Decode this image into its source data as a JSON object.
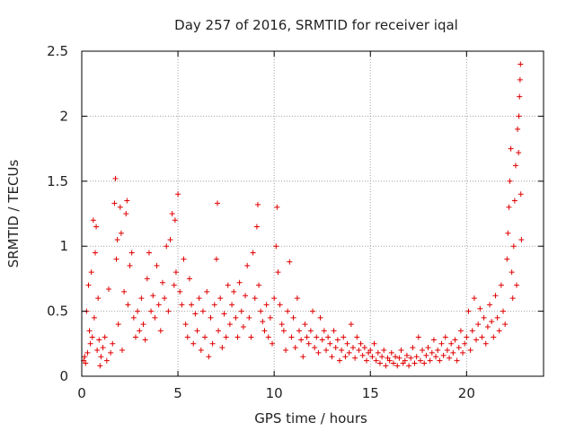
{
  "chart_data": {
    "type": "scatter",
    "title": "Day 257 of 2016, SRMTID for receiver iqal",
    "xlabel": "GPS time / hours",
    "ylabel": "SRMTID / TECUs",
    "xlim": [
      0,
      24
    ],
    "ylim": [
      0,
      2.5
    ],
    "x_ticks": [
      {
        "value": 0,
        "label": "0"
      },
      {
        "value": 5,
        "label": "5"
      },
      {
        "value": 10,
        "label": "10"
      },
      {
        "value": 15,
        "label": "15"
      },
      {
        "value": 20,
        "label": "20"
      }
    ],
    "y_ticks": [
      {
        "value": 0,
        "label": "0"
      },
      {
        "value": 0.5,
        "label": "0.5"
      },
      {
        "value": 1,
        "label": "1"
      },
      {
        "value": 1.5,
        "label": "1.5"
      },
      {
        "value": 2,
        "label": "2"
      },
      {
        "value": 2.5,
        "label": "2.5"
      }
    ],
    "grid": true,
    "marker": "+",
    "colors": {
      "points": "#e00000",
      "grid": "#a0a0a0",
      "axis": "#000000"
    },
    "series": [
      {
        "name": "SRMTID",
        "points": [
          [
            0.1,
            0.12
          ],
          [
            0.15,
            0.15
          ],
          [
            0.2,
            0.1
          ],
          [
            0.25,
            0.5
          ],
          [
            0.3,
            0.18
          ],
          [
            0.35,
            0.7
          ],
          [
            0.4,
            0.35
          ],
          [
            0.45,
            0.25
          ],
          [
            0.5,
            0.8
          ],
          [
            0.55,
            0.3
          ],
          [
            0.6,
            1.2
          ],
          [
            0.65,
            0.45
          ],
          [
            0.7,
            0.95
          ],
          [
            0.75,
            1.15
          ],
          [
            0.8,
            0.2
          ],
          [
            0.85,
            0.6
          ],
          [
            0.9,
            0.28
          ],
          [
            0.95,
            0.08
          ],
          [
            1.0,
            0.15
          ],
          [
            1.1,
            0.22
          ],
          [
            1.2,
            0.3
          ],
          [
            1.3,
            0.12
          ],
          [
            1.4,
            0.67
          ],
          [
            1.5,
            0.18
          ],
          [
            1.6,
            0.25
          ],
          [
            1.7,
            1.33
          ],
          [
            1.75,
            1.52
          ],
          [
            1.8,
            0.9
          ],
          [
            1.85,
            1.05
          ],
          [
            1.9,
            0.4
          ],
          [
            2.0,
            1.3
          ],
          [
            2.05,
            1.1
          ],
          [
            2.1,
            0.2
          ],
          [
            2.2,
            0.65
          ],
          [
            2.3,
            1.25
          ],
          [
            2.35,
            1.35
          ],
          [
            2.4,
            0.55
          ],
          [
            2.5,
            0.85
          ],
          [
            2.6,
            0.95
          ],
          [
            2.7,
            0.45
          ],
          [
            2.8,
            0.3
          ],
          [
            2.9,
            0.5
          ],
          [
            3.0,
            0.35
          ],
          [
            3.1,
            0.6
          ],
          [
            3.2,
            0.4
          ],
          [
            3.3,
            0.28
          ],
          [
            3.4,
            0.75
          ],
          [
            3.5,
            0.95
          ],
          [
            3.6,
            0.5
          ],
          [
            3.7,
            0.62
          ],
          [
            3.8,
            0.45
          ],
          [
            3.9,
            0.85
          ],
          [
            4.0,
            0.55
          ],
          [
            4.1,
            0.35
          ],
          [
            4.2,
            0.72
          ],
          [
            4.3,
            0.6
          ],
          [
            4.4,
            1.0
          ],
          [
            4.5,
            0.5
          ],
          [
            4.6,
            1.05
          ],
          [
            4.7,
            1.25
          ],
          [
            4.8,
            0.7
          ],
          [
            4.85,
            1.2
          ],
          [
            4.9,
            0.8
          ],
          [
            5.0,
            1.4
          ],
          [
            5.1,
            0.65
          ],
          [
            5.2,
            0.55
          ],
          [
            5.3,
            0.9
          ],
          [
            5.4,
            0.4
          ],
          [
            5.5,
            0.3
          ],
          [
            5.6,
            0.75
          ],
          [
            5.7,
            0.55
          ],
          [
            5.8,
            0.25
          ],
          [
            5.9,
            0.48
          ],
          [
            6.0,
            0.35
          ],
          [
            6.1,
            0.6
          ],
          [
            6.2,
            0.2
          ],
          [
            6.3,
            0.5
          ],
          [
            6.4,
            0.3
          ],
          [
            6.5,
            0.65
          ],
          [
            6.6,
            0.15
          ],
          [
            6.7,
            0.45
          ],
          [
            6.8,
            0.25
          ],
          [
            6.9,
            0.55
          ],
          [
            7.0,
            0.9
          ],
          [
            7.05,
            1.33
          ],
          [
            7.1,
            0.35
          ],
          [
            7.2,
            0.6
          ],
          [
            7.3,
            0.22
          ],
          [
            7.4,
            0.48
          ],
          [
            7.5,
            0.3
          ],
          [
            7.6,
            0.7
          ],
          [
            7.7,
            0.4
          ],
          [
            7.8,
            0.55
          ],
          [
            7.9,
            0.65
          ],
          [
            8.0,
            0.45
          ],
          [
            8.1,
            0.3
          ],
          [
            8.2,
            0.72
          ],
          [
            8.3,
            0.5
          ],
          [
            8.4,
            0.38
          ],
          [
            8.5,
            0.62
          ],
          [
            8.6,
            0.85
          ],
          [
            8.7,
            0.45
          ],
          [
            8.8,
            0.3
          ],
          [
            8.9,
            0.95
          ],
          [
            9.0,
            0.6
          ],
          [
            9.1,
            1.15
          ],
          [
            9.15,
            1.32
          ],
          [
            9.2,
            0.7
          ],
          [
            9.3,
            0.5
          ],
          [
            9.4,
            0.42
          ],
          [
            9.5,
            0.35
          ],
          [
            9.6,
            0.55
          ],
          [
            9.7,
            0.3
          ],
          [
            9.8,
            0.45
          ],
          [
            9.9,
            0.25
          ],
          [
            10.0,
            0.6
          ],
          [
            10.1,
            1.0
          ],
          [
            10.15,
            1.3
          ],
          [
            10.2,
            0.8
          ],
          [
            10.3,
            0.55
          ],
          [
            10.4,
            0.4
          ],
          [
            10.5,
            0.35
          ],
          [
            10.6,
            0.2
          ],
          [
            10.7,
            0.5
          ],
          [
            10.8,
            0.88
          ],
          [
            10.9,
            0.3
          ],
          [
            11.0,
            0.45
          ],
          [
            11.1,
            0.22
          ],
          [
            11.2,
            0.6
          ],
          [
            11.3,
            0.35
          ],
          [
            11.4,
            0.28
          ],
          [
            11.5,
            0.15
          ],
          [
            11.6,
            0.4
          ],
          [
            11.7,
            0.3
          ],
          [
            11.8,
            0.25
          ],
          [
            11.9,
            0.35
          ],
          [
            12.0,
            0.5
          ],
          [
            12.1,
            0.22
          ],
          [
            12.2,
            0.3
          ],
          [
            12.3,
            0.18
          ],
          [
            12.4,
            0.45
          ],
          [
            12.5,
            0.28
          ],
          [
            12.6,
            0.35
          ],
          [
            12.7,
            0.2
          ],
          [
            12.8,
            0.3
          ],
          [
            12.9,
            0.25
          ],
          [
            13.0,
            0.15
          ],
          [
            13.1,
            0.35
          ],
          [
            13.2,
            0.22
          ],
          [
            13.3,
            0.28
          ],
          [
            13.4,
            0.12
          ],
          [
            13.5,
            0.2
          ],
          [
            13.6,
            0.3
          ],
          [
            13.7,
            0.15
          ],
          [
            13.8,
            0.25
          ],
          [
            13.9,
            0.18
          ],
          [
            14.0,
            0.4
          ],
          [
            14.1,
            0.22
          ],
          [
            14.2,
            0.14
          ],
          [
            14.3,
            0.3
          ],
          [
            14.4,
            0.2
          ],
          [
            14.5,
            0.25
          ],
          [
            14.6,
            0.16
          ],
          [
            14.7,
            0.22
          ],
          [
            14.8,
            0.12
          ],
          [
            14.9,
            0.18
          ],
          [
            15.0,
            0.2
          ],
          [
            15.1,
            0.15
          ],
          [
            15.2,
            0.25
          ],
          [
            15.3,
            0.12
          ],
          [
            15.4,
            0.18
          ],
          [
            15.5,
            0.1
          ],
          [
            15.6,
            0.15
          ],
          [
            15.7,
            0.2
          ],
          [
            15.8,
            0.08
          ],
          [
            15.9,
            0.14
          ],
          [
            16.0,
            0.12
          ],
          [
            16.1,
            0.18
          ],
          [
            16.2,
            0.1
          ],
          [
            16.3,
            0.15
          ],
          [
            16.4,
            0.08
          ],
          [
            16.5,
            0.14
          ],
          [
            16.6,
            0.2
          ],
          [
            16.7,
            0.1
          ],
          [
            16.8,
            0.12
          ],
          [
            16.9,
            0.16
          ],
          [
            17.0,
            0.08
          ],
          [
            17.1,
            0.14
          ],
          [
            17.2,
            0.22
          ],
          [
            17.3,
            0.1
          ],
          [
            17.4,
            0.15
          ],
          [
            17.5,
            0.3
          ],
          [
            17.6,
            0.12
          ],
          [
            17.7,
            0.2
          ],
          [
            17.8,
            0.1
          ],
          [
            17.9,
            0.16
          ],
          [
            18.0,
            0.22
          ],
          [
            18.1,
            0.12
          ],
          [
            18.2,
            0.18
          ],
          [
            18.3,
            0.28
          ],
          [
            18.4,
            0.15
          ],
          [
            18.5,
            0.2
          ],
          [
            18.6,
            0.12
          ],
          [
            18.7,
            0.25
          ],
          [
            18.8,
            0.16
          ],
          [
            18.9,
            0.3
          ],
          [
            19.0,
            0.2
          ],
          [
            19.1,
            0.14
          ],
          [
            19.2,
            0.25
          ],
          [
            19.3,
            0.18
          ],
          [
            19.4,
            0.28
          ],
          [
            19.5,
            0.12
          ],
          [
            19.6,
            0.22
          ],
          [
            19.7,
            0.35
          ],
          [
            19.8,
            0.18
          ],
          [
            19.9,
            0.25
          ],
          [
            20.0,
            0.3
          ],
          [
            20.1,
            0.5
          ],
          [
            20.2,
            0.2
          ],
          [
            20.3,
            0.35
          ],
          [
            20.4,
            0.6
          ],
          [
            20.5,
            0.28
          ],
          [
            20.6,
            0.4
          ],
          [
            20.7,
            0.52
          ],
          [
            20.8,
            0.3
          ],
          [
            20.9,
            0.45
          ],
          [
            21.0,
            0.25
          ],
          [
            21.1,
            0.38
          ],
          [
            21.2,
            0.55
          ],
          [
            21.3,
            0.42
          ],
          [
            21.4,
            0.3
          ],
          [
            21.5,
            0.62
          ],
          [
            21.6,
            0.45
          ],
          [
            21.7,
            0.35
          ],
          [
            21.8,
            0.7
          ],
          [
            21.9,
            0.5
          ],
          [
            22.0,
            0.4
          ],
          [
            22.1,
            0.9
          ],
          [
            22.15,
            1.1
          ],
          [
            22.2,
            1.3
          ],
          [
            22.25,
            1.5
          ],
          [
            22.3,
            1.75
          ],
          [
            22.35,
            0.8
          ],
          [
            22.4,
            0.6
          ],
          [
            22.45,
            1.0
          ],
          [
            22.5,
            1.35
          ],
          [
            22.55,
            1.62
          ],
          [
            22.6,
            0.7
          ],
          [
            22.65,
            1.9
          ],
          [
            22.7,
            1.72
          ],
          [
            22.72,
            2.0
          ],
          [
            22.75,
            2.15
          ],
          [
            22.78,
            2.28
          ],
          [
            22.8,
            2.4
          ],
          [
            22.82,
            1.4
          ],
          [
            22.85,
            1.05
          ]
        ]
      }
    ]
  }
}
